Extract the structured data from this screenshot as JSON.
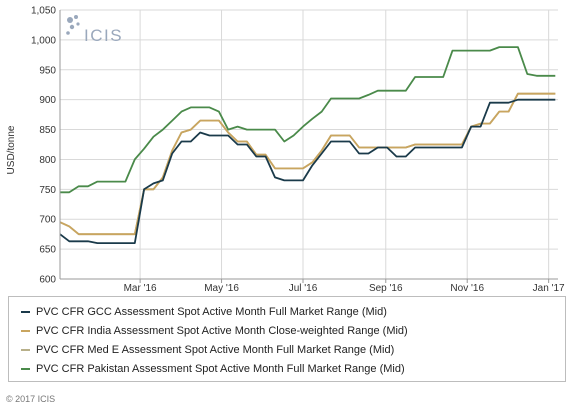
{
  "colors": {
    "gcc": "#1a3a4a",
    "india": "#c9a55f",
    "med": "#b8b08a",
    "pakistan": "#4a8a4a",
    "grid": "#d9d9d9",
    "logo": "#9aa8bc"
  },
  "logo": {
    "text": "ICIS"
  },
  "copyright": "© 2017 ICIS",
  "chart_data": {
    "type": "line",
    "ylabel": "USD/tonne",
    "ylim": [
      600,
      1050
    ],
    "yticks": [
      600,
      650,
      700,
      750,
      800,
      850,
      900,
      950,
      1000,
      1050
    ],
    "ytick_labels": [
      "600",
      "650",
      "700",
      "750",
      "800",
      "850",
      "900",
      "950",
      "1,000",
      "1,050"
    ],
    "xrange": [
      "2016-01-01",
      "2017-01-08"
    ],
    "xticks": [
      "2016-03-01",
      "2016-05-01",
      "2016-07-01",
      "2016-09-01",
      "2016-11-01",
      "2017-01-01"
    ],
    "xtick_labels": [
      "Mar '16",
      "May '16",
      "Jul '16",
      "Sep '16",
      "Nov '16",
      "Jan '17"
    ],
    "grid": true,
    "legend_position": "bottom",
    "series": [
      {
        "name": "PVC CFR GCC Assessment Spot Active Month Full Market Range (Mid)",
        "color_key": "gcc",
        "points": [
          [
            "2016-01-01",
            675
          ],
          [
            "2016-01-08",
            663
          ],
          [
            "2016-01-15",
            663
          ],
          [
            "2016-01-22",
            663
          ],
          [
            "2016-01-29",
            660
          ],
          [
            "2016-02-05",
            660
          ],
          [
            "2016-02-12",
            660
          ],
          [
            "2016-02-19",
            660
          ],
          [
            "2016-02-26",
            660
          ],
          [
            "2016-03-04",
            750
          ],
          [
            "2016-03-11",
            760
          ],
          [
            "2016-03-18",
            765
          ],
          [
            "2016-03-25",
            810
          ],
          [
            "2016-04-01",
            830
          ],
          [
            "2016-04-08",
            830
          ],
          [
            "2016-04-15",
            845
          ],
          [
            "2016-04-22",
            840
          ],
          [
            "2016-04-29",
            840
          ],
          [
            "2016-05-06",
            840
          ],
          [
            "2016-05-13",
            825
          ],
          [
            "2016-05-20",
            825
          ],
          [
            "2016-05-27",
            805
          ],
          [
            "2016-06-03",
            805
          ],
          [
            "2016-06-10",
            770
          ],
          [
            "2016-06-17",
            765
          ],
          [
            "2016-06-24",
            765
          ],
          [
            "2016-07-01",
            765
          ],
          [
            "2016-07-08",
            790
          ],
          [
            "2016-07-15",
            810
          ],
          [
            "2016-07-22",
            830
          ],
          [
            "2016-07-29",
            830
          ],
          [
            "2016-08-05",
            830
          ],
          [
            "2016-08-12",
            810
          ],
          [
            "2016-08-19",
            810
          ],
          [
            "2016-08-26",
            820
          ],
          [
            "2016-09-02",
            820
          ],
          [
            "2016-09-09",
            805
          ],
          [
            "2016-09-16",
            805
          ],
          [
            "2016-09-23",
            820
          ],
          [
            "2016-09-30",
            820
          ],
          [
            "2016-10-07",
            820
          ],
          [
            "2016-10-14",
            820
          ],
          [
            "2016-10-21",
            820
          ],
          [
            "2016-10-28",
            820
          ],
          [
            "2016-11-04",
            855
          ],
          [
            "2016-11-11",
            855
          ],
          [
            "2016-11-18",
            895
          ],
          [
            "2016-11-25",
            895
          ],
          [
            "2016-12-02",
            895
          ],
          [
            "2016-12-09",
            900
          ],
          [
            "2016-12-16",
            900
          ],
          [
            "2016-12-23",
            900
          ],
          [
            "2016-12-30",
            900
          ],
          [
            "2017-01-06",
            900
          ]
        ]
      },
      {
        "name": "PVC CFR India Assessment Spot Active Month Close-weighted Range (Mid)",
        "color_key": "india",
        "points": [
          [
            "2016-01-01",
            695
          ],
          [
            "2016-01-08",
            688
          ],
          [
            "2016-01-15",
            675
          ],
          [
            "2016-01-22",
            675
          ],
          [
            "2016-01-29",
            675
          ],
          [
            "2016-02-05",
            675
          ],
          [
            "2016-02-12",
            675
          ],
          [
            "2016-02-19",
            675
          ],
          [
            "2016-02-26",
            675
          ],
          [
            "2016-03-04",
            750
          ],
          [
            "2016-03-11",
            750
          ],
          [
            "2016-03-18",
            770
          ],
          [
            "2016-03-25",
            815
          ],
          [
            "2016-04-01",
            845
          ],
          [
            "2016-04-08",
            850
          ],
          [
            "2016-04-15",
            865
          ],
          [
            "2016-04-22",
            865
          ],
          [
            "2016-04-29",
            865
          ],
          [
            "2016-05-06",
            845
          ],
          [
            "2016-05-13",
            830
          ],
          [
            "2016-05-20",
            830
          ],
          [
            "2016-05-27",
            808
          ],
          [
            "2016-06-03",
            808
          ],
          [
            "2016-06-10",
            785
          ],
          [
            "2016-06-17",
            785
          ],
          [
            "2016-06-24",
            785
          ],
          [
            "2016-07-01",
            785
          ],
          [
            "2016-07-08",
            795
          ],
          [
            "2016-07-15",
            815
          ],
          [
            "2016-07-22",
            840
          ],
          [
            "2016-07-29",
            840
          ],
          [
            "2016-08-05",
            840
          ],
          [
            "2016-08-12",
            820
          ],
          [
            "2016-08-19",
            820
          ],
          [
            "2016-08-26",
            820
          ],
          [
            "2016-09-02",
            820
          ],
          [
            "2016-09-09",
            820
          ],
          [
            "2016-09-16",
            820
          ],
          [
            "2016-09-23",
            825
          ],
          [
            "2016-09-30",
            825
          ],
          [
            "2016-10-07",
            825
          ],
          [
            "2016-10-14",
            825
          ],
          [
            "2016-10-21",
            825
          ],
          [
            "2016-10-28",
            825
          ],
          [
            "2016-11-04",
            855
          ],
          [
            "2016-11-11",
            860
          ],
          [
            "2016-11-18",
            860
          ],
          [
            "2016-11-25",
            880
          ],
          [
            "2016-12-02",
            880
          ],
          [
            "2016-12-09",
            910
          ],
          [
            "2016-12-16",
            910
          ],
          [
            "2016-12-23",
            910
          ],
          [
            "2016-12-30",
            910
          ],
          [
            "2017-01-06",
            910
          ]
        ]
      },
      {
        "name": "PVC CFR Med E Assessment Spot Active Month Full Market Range (Mid)",
        "color_key": "med",
        "points": [
          [
            "2016-01-01",
            695
          ],
          [
            "2016-01-08",
            688
          ],
          [
            "2016-01-15",
            675
          ],
          [
            "2016-01-22",
            675
          ],
          [
            "2016-01-29",
            675
          ],
          [
            "2016-02-05",
            675
          ],
          [
            "2016-02-12",
            675
          ],
          [
            "2016-02-19",
            675
          ],
          [
            "2016-02-26",
            675
          ],
          [
            "2016-03-04",
            750
          ],
          [
            "2016-03-11",
            750
          ],
          [
            "2016-03-18",
            770
          ],
          [
            "2016-03-25",
            815
          ],
          [
            "2016-04-01",
            845
          ],
          [
            "2016-04-08",
            850
          ],
          [
            "2016-04-15",
            865
          ],
          [
            "2016-04-22",
            865
          ],
          [
            "2016-04-29",
            865
          ],
          [
            "2016-05-06",
            845
          ],
          [
            "2016-05-13",
            830
          ],
          [
            "2016-05-20",
            830
          ],
          [
            "2016-05-27",
            808
          ],
          [
            "2016-06-03",
            808
          ],
          [
            "2016-06-10",
            785
          ],
          [
            "2016-06-17",
            785
          ],
          [
            "2016-06-24",
            785
          ],
          [
            "2016-07-01",
            785
          ],
          [
            "2016-07-08",
            795
          ],
          [
            "2016-07-15",
            815
          ],
          [
            "2016-07-22",
            840
          ],
          [
            "2016-07-29",
            840
          ],
          [
            "2016-08-05",
            840
          ],
          [
            "2016-08-12",
            820
          ],
          [
            "2016-08-19",
            820
          ],
          [
            "2016-08-26",
            820
          ],
          [
            "2016-09-02",
            820
          ],
          [
            "2016-09-09",
            820
          ],
          [
            "2016-09-16",
            820
          ],
          [
            "2016-09-23",
            825
          ],
          [
            "2016-09-30",
            825
          ],
          [
            "2016-10-07",
            825
          ],
          [
            "2016-10-14",
            825
          ],
          [
            "2016-10-21",
            825
          ],
          [
            "2016-10-28",
            825
          ],
          [
            "2016-11-04",
            855
          ],
          [
            "2016-11-11",
            860
          ],
          [
            "2016-11-18",
            860
          ],
          [
            "2016-11-25",
            880
          ],
          [
            "2016-12-02",
            880
          ],
          [
            "2016-12-09",
            910
          ],
          [
            "2016-12-16",
            910
          ],
          [
            "2016-12-23",
            910
          ],
          [
            "2016-12-30",
            910
          ],
          [
            "2017-01-06",
            910
          ]
        ]
      },
      {
        "name": "PVC CFR Pakistan Assessment Spot Active Month Full Market Range (Mid)",
        "color_key": "pakistan",
        "points": [
          [
            "2016-01-01",
            745
          ],
          [
            "2016-01-08",
            745
          ],
          [
            "2016-01-15",
            755
          ],
          [
            "2016-01-22",
            755
          ],
          [
            "2016-01-29",
            763
          ],
          [
            "2016-02-05",
            763
          ],
          [
            "2016-02-12",
            763
          ],
          [
            "2016-02-19",
            763
          ],
          [
            "2016-02-26",
            800
          ],
          [
            "2016-03-04",
            818
          ],
          [
            "2016-03-11",
            838
          ],
          [
            "2016-03-18",
            850
          ],
          [
            "2016-03-25",
            865
          ],
          [
            "2016-04-01",
            880
          ],
          [
            "2016-04-08",
            887
          ],
          [
            "2016-04-15",
            887
          ],
          [
            "2016-04-22",
            887
          ],
          [
            "2016-04-29",
            880
          ],
          [
            "2016-05-06",
            850
          ],
          [
            "2016-05-13",
            855
          ],
          [
            "2016-05-20",
            850
          ],
          [
            "2016-05-27",
            850
          ],
          [
            "2016-06-03",
            850
          ],
          [
            "2016-06-10",
            850
          ],
          [
            "2016-06-17",
            830
          ],
          [
            "2016-06-24",
            840
          ],
          [
            "2016-07-01",
            855
          ],
          [
            "2016-07-08",
            868
          ],
          [
            "2016-07-15",
            880
          ],
          [
            "2016-07-22",
            902
          ],
          [
            "2016-07-29",
            902
          ],
          [
            "2016-08-05",
            902
          ],
          [
            "2016-08-12",
            902
          ],
          [
            "2016-08-19",
            908
          ],
          [
            "2016-08-26",
            915
          ],
          [
            "2016-09-02",
            915
          ],
          [
            "2016-09-09",
            915
          ],
          [
            "2016-09-16",
            915
          ],
          [
            "2016-09-23",
            938
          ],
          [
            "2016-09-30",
            938
          ],
          [
            "2016-10-07",
            938
          ],
          [
            "2016-10-14",
            938
          ],
          [
            "2016-10-21",
            982
          ],
          [
            "2016-10-28",
            982
          ],
          [
            "2016-11-04",
            982
          ],
          [
            "2016-11-11",
            982
          ],
          [
            "2016-11-18",
            982
          ],
          [
            "2016-11-25",
            988
          ],
          [
            "2016-12-02",
            988
          ],
          [
            "2016-12-09",
            988
          ],
          [
            "2016-12-16",
            943
          ],
          [
            "2016-12-23",
            940
          ],
          [
            "2016-12-30",
            940
          ],
          [
            "2017-01-06",
            940
          ]
        ]
      }
    ]
  }
}
